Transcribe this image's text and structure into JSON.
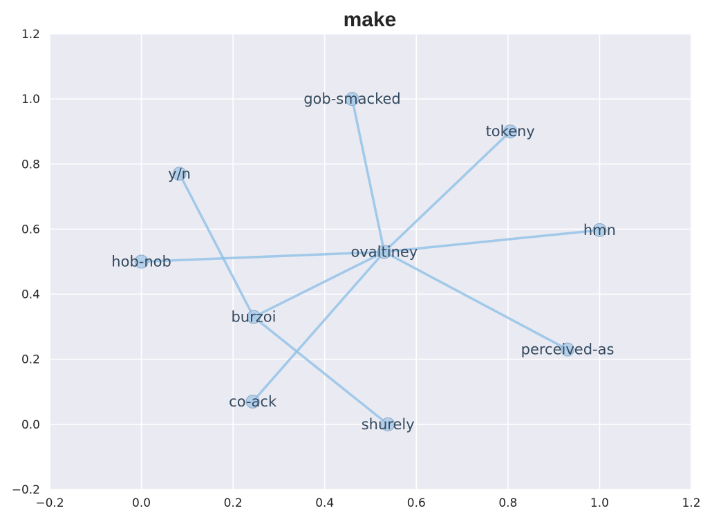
{
  "chart_data": {
    "type": "scatter",
    "title": "make",
    "xlabel": "",
    "ylabel": "",
    "xlim": [
      -0.2,
      1.2
    ],
    "ylim": [
      -0.2,
      1.2
    ],
    "x_ticks": [
      -0.2,
      0.0,
      0.2,
      0.4,
      0.6,
      0.8,
      1.0,
      1.2
    ],
    "y_ticks": [
      -0.2,
      0.0,
      0.2,
      0.4,
      0.6,
      0.8,
      1.0,
      1.2
    ],
    "x_tick_labels": [
      "−0.2",
      "0.0",
      "0.2",
      "0.4",
      "0.6",
      "0.8",
      "1.0",
      "1.2"
    ],
    "y_tick_labels": [
      "−0.2",
      "0.0",
      "0.2",
      "0.4",
      "0.6",
      "0.8",
      "1.0",
      "1.2"
    ],
    "grid": true,
    "nodes": [
      {
        "id": "ovaltiney",
        "label": "ovaltiney",
        "x": 0.53,
        "y": 0.53
      },
      {
        "id": "gob-smacked",
        "label": "gob-smacked",
        "x": 0.46,
        "y": 1.0
      },
      {
        "id": "tokeny",
        "label": "tokeny",
        "x": 0.805,
        "y": 0.9
      },
      {
        "id": "y/n",
        "label": "y/n",
        "x": 0.083,
        "y": 0.77
      },
      {
        "id": "hmn",
        "label": "hmn",
        "x": 1.0,
        "y": 0.597
      },
      {
        "id": "hob-nob",
        "label": "hob-nob",
        "x": 0.0,
        "y": 0.5
      },
      {
        "id": "burzoi",
        "label": "burzoi",
        "x": 0.245,
        "y": 0.33
      },
      {
        "id": "perceived-as",
        "label": "perceived-as",
        "x": 0.93,
        "y": 0.23
      },
      {
        "id": "co-ack",
        "label": "co-ack",
        "x": 0.243,
        "y": 0.07
      },
      {
        "id": "shurely",
        "label": "shurely",
        "x": 0.538,
        "y": 0.0
      }
    ],
    "edges": [
      [
        "ovaltiney",
        "gob-smacked"
      ],
      [
        "ovaltiney",
        "tokeny"
      ],
      [
        "ovaltiney",
        "hmn"
      ],
      [
        "ovaltiney",
        "hob-nob"
      ],
      [
        "ovaltiney",
        "burzoi"
      ],
      [
        "ovaltiney",
        "perceived-as"
      ],
      [
        "ovaltiney",
        "co-ack"
      ],
      [
        "y/n",
        "burzoi"
      ],
      [
        "burzoi",
        "shurely"
      ]
    ],
    "colors": {
      "plot_background": "#eaeaf2",
      "grid": "#ffffff",
      "edge": "#8ec0e6",
      "node": "#a9cbea",
      "label": "#34495e"
    }
  }
}
